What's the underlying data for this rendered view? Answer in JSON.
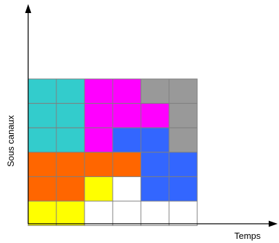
{
  "axes": {
    "x_label": "Temps",
    "y_label": "Sous canaux"
  },
  "palette": {
    "cyan": "#33cccc",
    "magenta": "#ff00ff",
    "gray": "#999999",
    "blue": "#3366ff",
    "orange": "#ff6600",
    "yellow": "#ffff00",
    "white": "#ffffff"
  },
  "grid": {
    "columns": 6,
    "rows": 6,
    "rows_top_to_bottom": [
      [
        "cyan",
        "cyan",
        "magenta",
        "magenta",
        "gray",
        "gray"
      ],
      [
        "cyan",
        "cyan",
        "magenta",
        "magenta",
        "magenta",
        "gray"
      ],
      [
        "cyan",
        "cyan",
        "magenta",
        "blue",
        "blue",
        "gray"
      ],
      [
        "orange",
        "orange",
        "orange",
        "orange",
        "blue",
        "blue"
      ],
      [
        "orange",
        "orange",
        "yellow",
        "white",
        "blue",
        "blue"
      ],
      [
        "yellow",
        "yellow",
        "white",
        "white",
        "white",
        "white"
      ]
    ]
  }
}
